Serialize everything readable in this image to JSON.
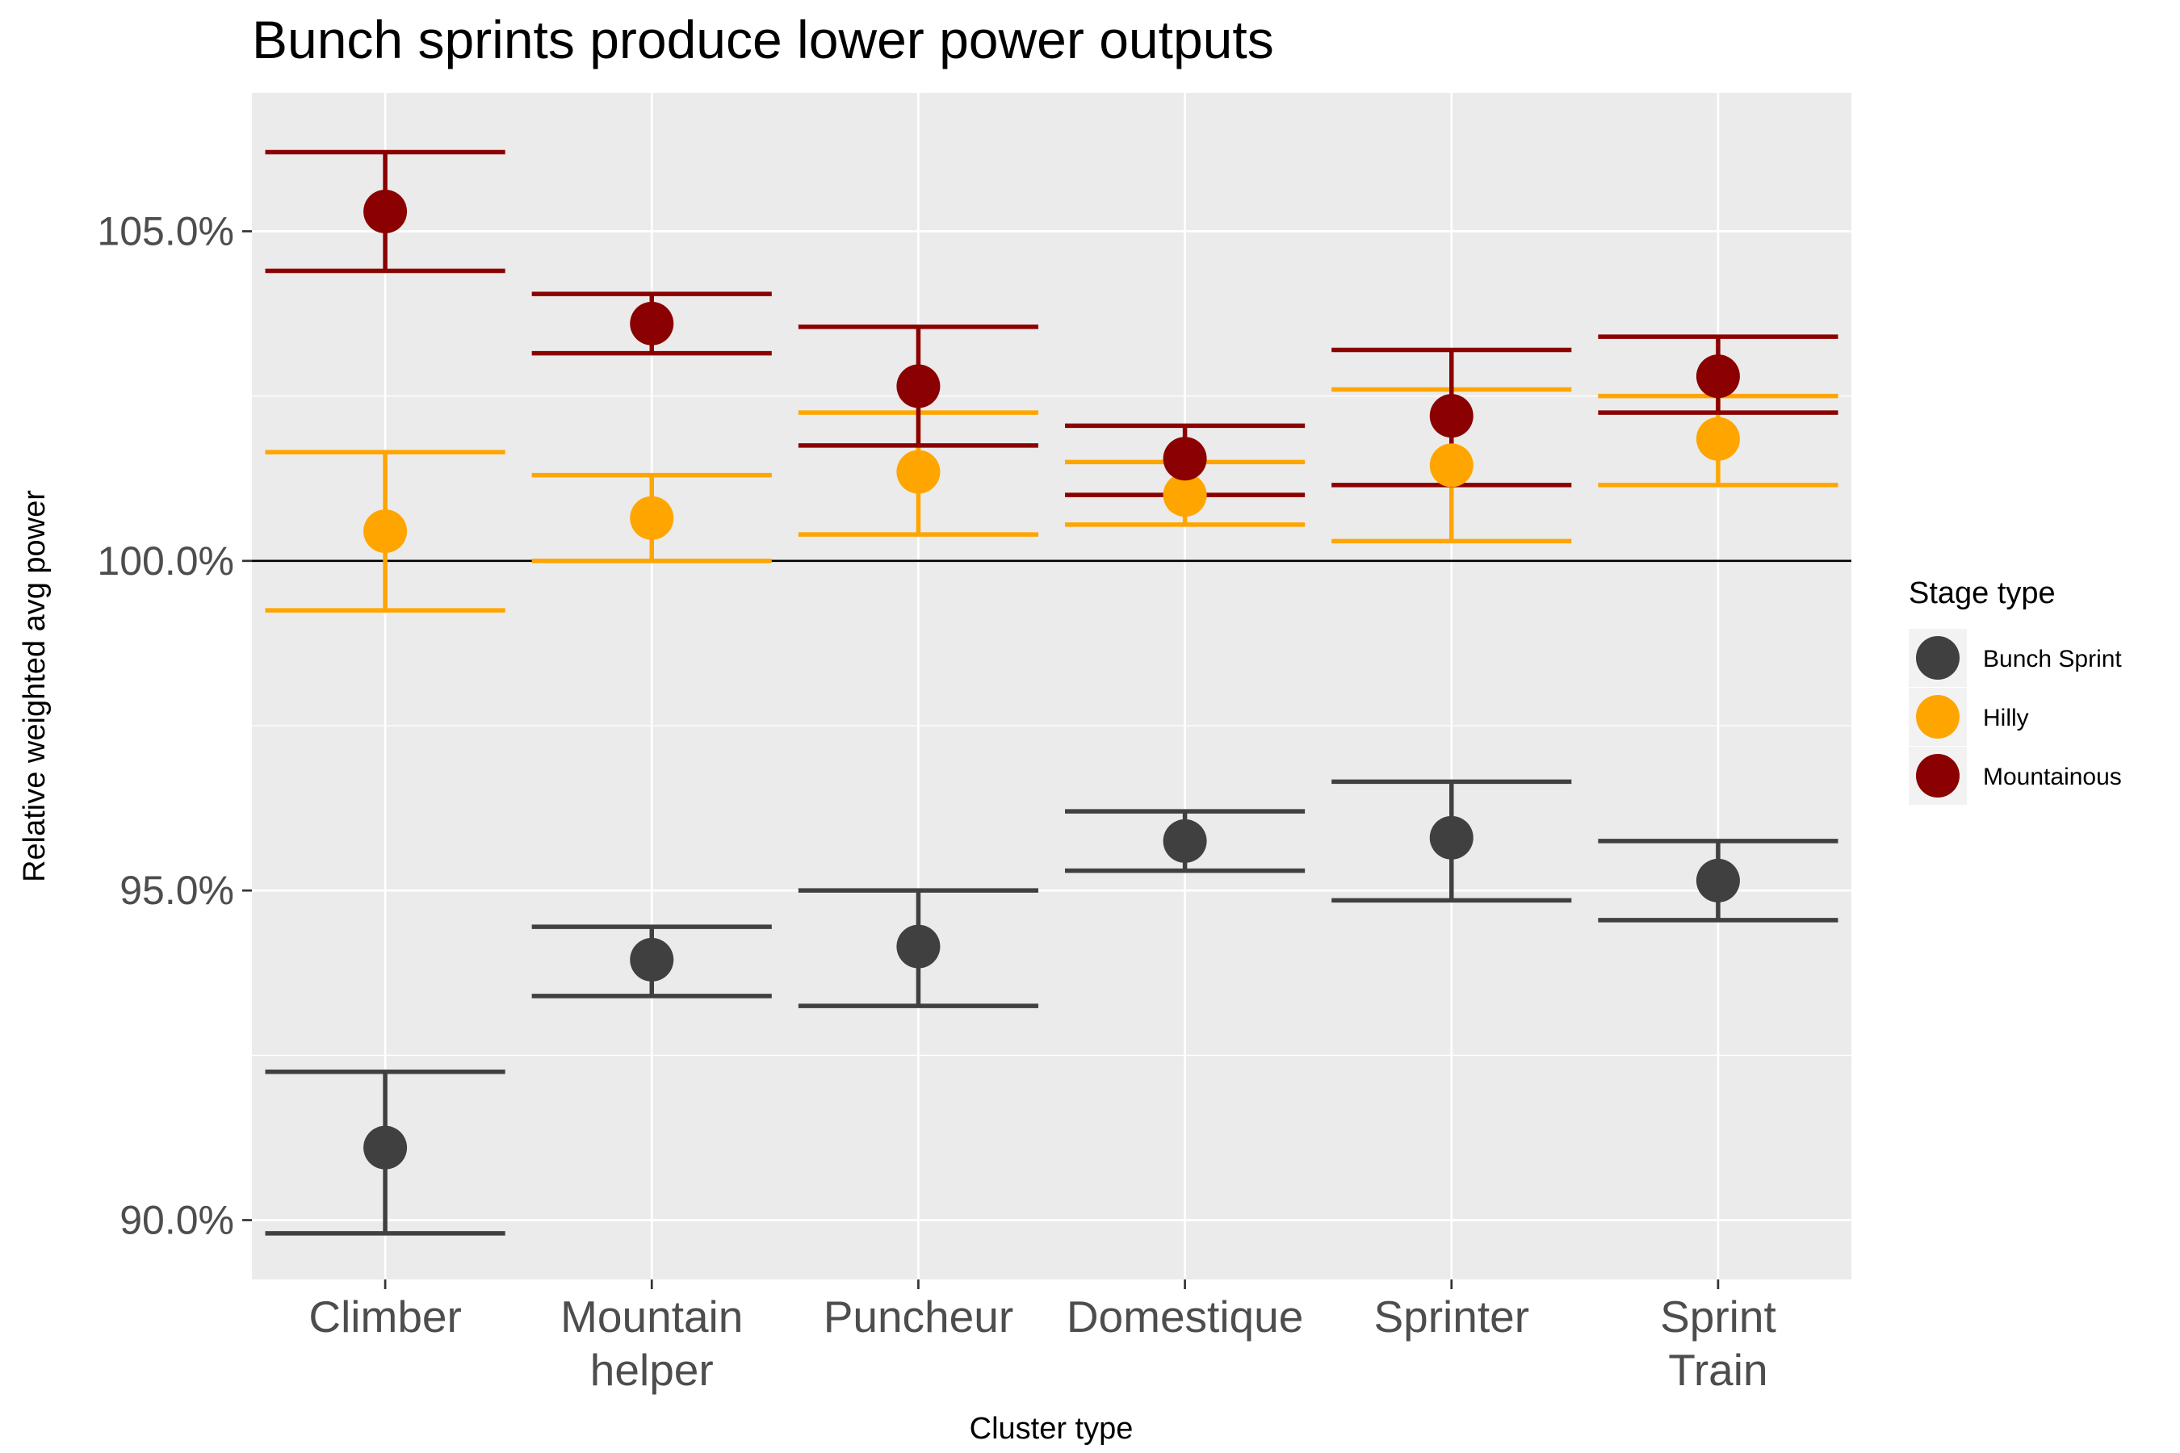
{
  "chart_data": {
    "type": "scatter",
    "title": "Bunch sprints produce lower power outputs",
    "xlabel": "Cluster type",
    "ylabel": "Relative weighted avg power",
    "categories": [
      [
        "Climber"
      ],
      [
        "Mountain",
        "helper"
      ],
      [
        "Puncheur"
      ],
      [
        "Domestique"
      ],
      [
        "Sprinter"
      ],
      [
        "Sprint",
        "Train"
      ]
    ],
    "yticks": [
      90,
      95,
      100,
      105
    ],
    "ytick_labels": [
      "90.0%",
      "95.0%",
      "100.0%",
      "105.0%"
    ],
    "ylim": [
      89.1,
      107.1
    ],
    "reference_line": 100,
    "grid": true,
    "legend": {
      "title": "Stage type",
      "position": "right"
    },
    "series": [
      {
        "name": "Bunch Sprint",
        "color": "#404040",
        "values": [
          91.1,
          93.95,
          94.15,
          95.75,
          95.8,
          95.15
        ],
        "lower": [
          89.8,
          93.4,
          93.25,
          95.3,
          94.85,
          94.55
        ],
        "upper": [
          92.25,
          94.45,
          95.0,
          96.2,
          96.65,
          95.75
        ]
      },
      {
        "name": "Hilly",
        "color": "#ffa500",
        "values": [
          100.45,
          100.65,
          101.35,
          101.0,
          101.45,
          101.85
        ],
        "lower": [
          99.25,
          100.0,
          100.4,
          100.55,
          100.3,
          101.15
        ],
        "upper": [
          101.65,
          101.3,
          102.25,
          101.5,
          102.6,
          102.5
        ]
      },
      {
        "name": "Mountainous",
        "color": "#8b0000",
        "values": [
          105.3,
          103.6,
          102.65,
          101.55,
          102.2,
          102.8
        ],
        "lower": [
          104.4,
          103.15,
          101.75,
          101.0,
          101.15,
          102.25
        ],
        "upper": [
          106.2,
          104.05,
          103.55,
          102.05,
          103.2,
          103.4
        ]
      }
    ]
  }
}
